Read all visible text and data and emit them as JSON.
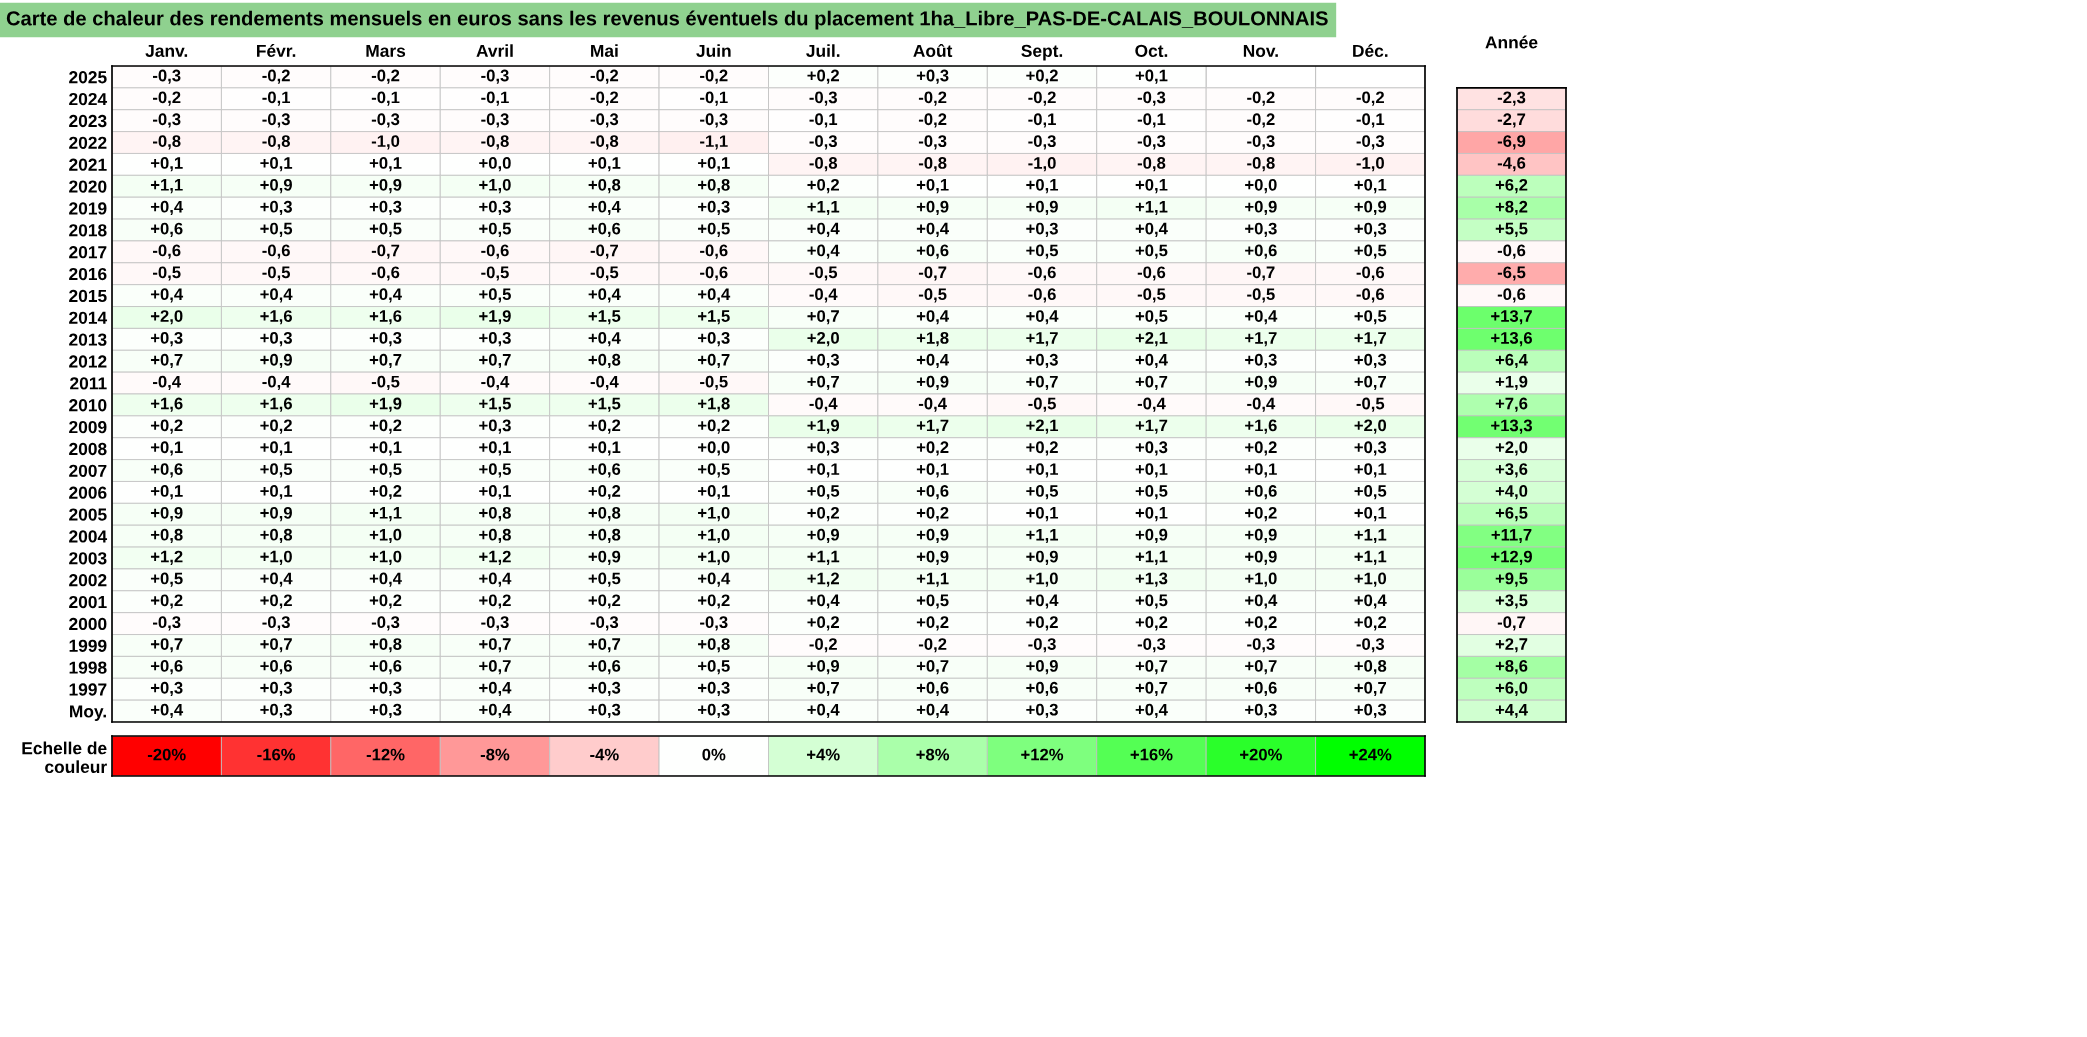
{
  "chart_data": [
    {
      "type": "heatmap",
      "title": "Carte de chaleur des rendements mensuels en euros sans les revenus éventuels du placement 1ha_Libre_PAS-DE-CALAIS_BOULONNAIS",
      "categories": [
        "Janv.",
        "Févr.",
        "Mars",
        "Avril",
        "Mai",
        "Juin",
        "Juil.",
        "Août",
        "Sept.",
        "Oct.",
        "Nov.",
        "Déc."
      ],
      "y_categories": [
        "2025",
        "2024",
        "2023",
        "2022",
        "2021",
        "2020",
        "2019",
        "2018",
        "2017",
        "2016",
        "2015",
        "2014",
        "2013",
        "2012",
        "2011",
        "2010",
        "2009",
        "2008",
        "2007",
        "2006",
        "2005",
        "2004",
        "2003",
        "2002",
        "2001",
        "2000",
        "1999",
        "1998",
        "1997",
        "Moy."
      ],
      "colors": [
        "#ff0000",
        "#ffffff",
        "#00ff00"
      ],
      "cells": [
        [
          -0.3,
          -0.2,
          -0.2,
          -0.3,
          -0.2,
          -0.2,
          0.2,
          0.3,
          0.2,
          0.1,
          null,
          null
        ],
        [
          -0.2,
          -0.1,
          -0.1,
          -0.1,
          -0.2,
          -0.1,
          -0.3,
          -0.2,
          -0.2,
          -0.3,
          -0.2,
          -0.2
        ],
        [
          -0.3,
          -0.3,
          -0.3,
          -0.3,
          -0.3,
          -0.3,
          -0.1,
          -0.2,
          -0.1,
          -0.1,
          -0.2,
          -0.1
        ],
        [
          -0.8,
          -0.8,
          -1.0,
          -0.8,
          -0.8,
          -1.1,
          -0.3,
          -0.3,
          -0.3,
          -0.3,
          -0.3,
          -0.3
        ],
        [
          0.1,
          0.1,
          0.1,
          0.0,
          0.1,
          0.1,
          -0.8,
          -0.8,
          -1.0,
          -0.8,
          -0.8,
          -1.0
        ],
        [
          1.1,
          0.9,
          0.9,
          1.0,
          0.8,
          0.8,
          0.2,
          0.1,
          0.1,
          0.1,
          0.0,
          0.1
        ],
        [
          0.4,
          0.3,
          0.3,
          0.3,
          0.4,
          0.3,
          1.1,
          0.9,
          0.9,
          1.1,
          0.9,
          0.9
        ],
        [
          0.6,
          0.5,
          0.5,
          0.5,
          0.6,
          0.5,
          0.4,
          0.4,
          0.3,
          0.4,
          0.3,
          0.3
        ],
        [
          -0.6,
          -0.6,
          -0.7,
          -0.6,
          -0.7,
          -0.6,
          0.4,
          0.6,
          0.5,
          0.5,
          0.6,
          0.5
        ],
        [
          -0.5,
          -0.5,
          -0.6,
          -0.5,
          -0.5,
          -0.6,
          -0.5,
          -0.7,
          -0.6,
          -0.6,
          -0.7,
          -0.6
        ],
        [
          0.4,
          0.4,
          0.4,
          0.5,
          0.4,
          0.4,
          -0.4,
          -0.5,
          -0.6,
          -0.5,
          -0.5,
          -0.6
        ],
        [
          2.0,
          1.6,
          1.6,
          1.9,
          1.5,
          1.5,
          0.7,
          0.4,
          0.4,
          0.5,
          0.4,
          0.5
        ],
        [
          0.3,
          0.3,
          0.3,
          0.3,
          0.4,
          0.3,
          2.0,
          1.8,
          1.7,
          2.1,
          1.7,
          1.7
        ],
        [
          0.7,
          0.9,
          0.7,
          0.7,
          0.8,
          0.7,
          0.3,
          0.4,
          0.3,
          0.4,
          0.3,
          0.3
        ],
        [
          -0.4,
          -0.4,
          -0.5,
          -0.4,
          -0.4,
          -0.5,
          0.7,
          0.9,
          0.7,
          0.7,
          0.9,
          0.7
        ],
        [
          1.6,
          1.6,
          1.9,
          1.5,
          1.5,
          1.8,
          -0.4,
          -0.4,
          -0.5,
          -0.4,
          -0.4,
          -0.5
        ],
        [
          0.2,
          0.2,
          0.2,
          0.3,
          0.2,
          0.2,
          1.9,
          1.7,
          2.1,
          1.7,
          1.6,
          2.0
        ],
        [
          0.1,
          0.1,
          0.1,
          0.1,
          0.1,
          0.0,
          0.3,
          0.2,
          0.2,
          0.3,
          0.2,
          0.3
        ],
        [
          0.6,
          0.5,
          0.5,
          0.5,
          0.6,
          0.5,
          0.1,
          0.1,
          0.1,
          0.1,
          0.1,
          0.1
        ],
        [
          0.1,
          0.1,
          0.2,
          0.1,
          0.2,
          0.1,
          0.5,
          0.6,
          0.5,
          0.5,
          0.6,
          0.5
        ],
        [
          0.9,
          0.9,
          1.1,
          0.8,
          0.8,
          1.0,
          0.2,
          0.2,
          0.1,
          0.1,
          0.2,
          0.1
        ],
        [
          0.8,
          0.8,
          1.0,
          0.8,
          0.8,
          1.0,
          0.9,
          0.9,
          1.1,
          0.9,
          0.9,
          1.1
        ],
        [
          1.2,
          1.0,
          1.0,
          1.2,
          0.9,
          1.0,
          1.1,
          0.9,
          0.9,
          1.1,
          0.9,
          1.1
        ],
        [
          0.5,
          0.4,
          0.4,
          0.4,
          0.5,
          0.4,
          1.2,
          1.1,
          1.0,
          1.3,
          1.0,
          1.0
        ],
        [
          0.2,
          0.2,
          0.2,
          0.2,
          0.2,
          0.2,
          0.4,
          0.5,
          0.4,
          0.5,
          0.4,
          0.4
        ],
        [
          -0.3,
          -0.3,
          -0.3,
          -0.3,
          -0.3,
          -0.3,
          0.2,
          0.2,
          0.2,
          0.2,
          0.2,
          0.2
        ],
        [
          0.7,
          0.7,
          0.8,
          0.7,
          0.7,
          0.8,
          -0.2,
          -0.2,
          -0.3,
          -0.3,
          -0.3,
          -0.3
        ],
        [
          0.6,
          0.6,
          0.6,
          0.7,
          0.6,
          0.5,
          0.9,
          0.7,
          0.9,
          0.7,
          0.7,
          0.8
        ],
        [
          0.3,
          0.3,
          0.3,
          0.4,
          0.3,
          0.3,
          0.7,
          0.6,
          0.6,
          0.7,
          0.6,
          0.7
        ],
        [
          0.4,
          0.3,
          0.3,
          0.4,
          0.3,
          0.3,
          0.4,
          0.4,
          0.3,
          0.4,
          0.3,
          0.3
        ]
      ],
      "cell_labels": [
        [
          "-0,3",
          "-0,2",
          "-0,2",
          "-0,3",
          "-0,2",
          "-0,2",
          "+0,2",
          "+0,3",
          "+0,2",
          "+0,1",
          null,
          null
        ],
        [
          "-0,2",
          "-0,1",
          "-0,1",
          "-0,1",
          "-0,2",
          "-0,1",
          "-0,3",
          "-0,2",
          "-0,2",
          "-0,3",
          "-0,2",
          "-0,2"
        ],
        [
          "-0,3",
          "-0,3",
          "-0,3",
          "-0,3",
          "-0,3",
          "-0,3",
          "-0,1",
          "-0,2",
          "-0,1",
          "-0,1",
          "-0,2",
          "-0,1"
        ],
        [
          "-0,8",
          "-0,8",
          "-1,0",
          "-0,8",
          "-0,8",
          "-1,1",
          "-0,3",
          "-0,3",
          "-0,3",
          "-0,3",
          "-0,3",
          "-0,3"
        ],
        [
          "+0,1",
          "+0,1",
          "+0,1",
          "+0,0",
          "+0,1",
          "+0,1",
          "-0,8",
          "-0,8",
          "-1,0",
          "-0,8",
          "-0,8",
          "-1,0"
        ],
        [
          "+1,1",
          "+0,9",
          "+0,9",
          "+1,0",
          "+0,8",
          "+0,8",
          "+0,2",
          "+0,1",
          "+0,1",
          "+0,1",
          "+0,0",
          "+0,1"
        ],
        [
          "+0,4",
          "+0,3",
          "+0,3",
          "+0,3",
          "+0,4",
          "+0,3",
          "+1,1",
          "+0,9",
          "+0,9",
          "+1,1",
          "+0,9",
          "+0,9"
        ],
        [
          "+0,6",
          "+0,5",
          "+0,5",
          "+0,5",
          "+0,6",
          "+0,5",
          "+0,4",
          "+0,4",
          "+0,3",
          "+0,4",
          "+0,3",
          "+0,3"
        ],
        [
          "-0,6",
          "-0,6",
          "-0,7",
          "-0,6",
          "-0,7",
          "-0,6",
          "+0,4",
          "+0,6",
          "+0,5",
          "+0,5",
          "+0,6",
          "+0,5"
        ],
        [
          "-0,5",
          "-0,5",
          "-0,6",
          "-0,5",
          "-0,5",
          "-0,6",
          "-0,5",
          "-0,7",
          "-0,6",
          "-0,6",
          "-0,7",
          "-0,6"
        ],
        [
          "+0,4",
          "+0,4",
          "+0,4",
          "+0,5",
          "+0,4",
          "+0,4",
          "-0,4",
          "-0,5",
          "-0,6",
          "-0,5",
          "-0,5",
          "-0,6"
        ],
        [
          "+2,0",
          "+1,6",
          "+1,6",
          "+1,9",
          "+1,5",
          "+1,5",
          "+0,7",
          "+0,4",
          "+0,4",
          "+0,5",
          "+0,4",
          "+0,5"
        ],
        [
          "+0,3",
          "+0,3",
          "+0,3",
          "+0,3",
          "+0,4",
          "+0,3",
          "+2,0",
          "+1,8",
          "+1,7",
          "+2,1",
          "+1,7",
          "+1,7"
        ],
        [
          "+0,7",
          "+0,9",
          "+0,7",
          "+0,7",
          "+0,8",
          "+0,7",
          "+0,3",
          "+0,4",
          "+0,3",
          "+0,4",
          "+0,3",
          "+0,3"
        ],
        [
          "-0,4",
          "-0,4",
          "-0,5",
          "-0,4",
          "-0,4",
          "-0,5",
          "+0,7",
          "+0,9",
          "+0,7",
          "+0,7",
          "+0,9",
          "+0,7"
        ],
        [
          "+1,6",
          "+1,6",
          "+1,9",
          "+1,5",
          "+1,5",
          "+1,8",
          "-0,4",
          "-0,4",
          "-0,5",
          "-0,4",
          "-0,4",
          "-0,5"
        ],
        [
          "+0,2",
          "+0,2",
          "+0,2",
          "+0,3",
          "+0,2",
          "+0,2",
          "+1,9",
          "+1,7",
          "+2,1",
          "+1,7",
          "+1,6",
          "+2,0"
        ],
        [
          "+0,1",
          "+0,1",
          "+0,1",
          "+0,1",
          "+0,1",
          "+0,0",
          "+0,3",
          "+0,2",
          "+0,2",
          "+0,3",
          "+0,2",
          "+0,3"
        ],
        [
          "+0,6",
          "+0,5",
          "+0,5",
          "+0,5",
          "+0,6",
          "+0,5",
          "+0,1",
          "+0,1",
          "+0,1",
          "+0,1",
          "+0,1",
          "+0,1"
        ],
        [
          "+0,1",
          "+0,1",
          "+0,2",
          "+0,1",
          "+0,2",
          "+0,1",
          "+0,5",
          "+0,6",
          "+0,5",
          "+0,5",
          "+0,6",
          "+0,5"
        ],
        [
          "+0,9",
          "+0,9",
          "+1,1",
          "+0,8",
          "+0,8",
          "+1,0",
          "+0,2",
          "+0,2",
          "+0,1",
          "+0,1",
          "+0,2",
          "+0,1"
        ],
        [
          "+0,8",
          "+0,8",
          "+1,0",
          "+0,8",
          "+0,8",
          "+1,0",
          "+0,9",
          "+0,9",
          "+1,1",
          "+0,9",
          "+0,9",
          "+1,1"
        ],
        [
          "+1,2",
          "+1,0",
          "+1,0",
          "+1,2",
          "+0,9",
          "+1,0",
          "+1,1",
          "+0,9",
          "+0,9",
          "+1,1",
          "+0,9",
          "+1,1"
        ],
        [
          "+0,5",
          "+0,4",
          "+0,4",
          "+0,4",
          "+0,5",
          "+0,4",
          "+1,2",
          "+1,1",
          "+1,0",
          "+1,3",
          "+1,0",
          "+1,0"
        ],
        [
          "+0,2",
          "+0,2",
          "+0,2",
          "+0,2",
          "+0,2",
          "+0,2",
          "+0,4",
          "+0,5",
          "+0,4",
          "+0,5",
          "+0,4",
          "+0,4"
        ],
        [
          "-0,3",
          "-0,3",
          "-0,3",
          "-0,3",
          "-0,3",
          "-0,3",
          "+0,2",
          "+0,2",
          "+0,2",
          "+0,2",
          "+0,2",
          "+0,2"
        ],
        [
          "+0,7",
          "+0,7",
          "+0,8",
          "+0,7",
          "+0,7",
          "+0,8",
          "-0,2",
          "-0,2",
          "-0,3",
          "-0,3",
          "-0,3",
          "-0,3"
        ],
        [
          "+0,6",
          "+0,6",
          "+0,6",
          "+0,7",
          "+0,6",
          "+0,5",
          "+0,9",
          "+0,7",
          "+0,9",
          "+0,7",
          "+0,7",
          "+0,8"
        ],
        [
          "+0,3",
          "+0,3",
          "+0,3",
          "+0,4",
          "+0,3",
          "+0,3",
          "+0,7",
          "+0,6",
          "+0,6",
          "+0,7",
          "+0,6",
          "+0,7"
        ],
        [
          "+0,4",
          "+0,3",
          "+0,3",
          "+0,4",
          "+0,3",
          "+0,3",
          "+0,4",
          "+0,4",
          "+0,3",
          "+0,4",
          "+0,3",
          "+0,3"
        ]
      ]
    },
    {
      "type": "heatmap",
      "categories": [
        "Année"
      ],
      "y_categories": [
        null,
        null,
        null,
        null,
        null,
        null,
        null,
        null,
        null,
        null,
        null,
        null,
        null,
        null,
        null,
        null,
        null,
        null,
        null,
        null,
        null,
        null,
        null,
        null,
        null,
        null,
        null,
        null,
        null
      ],
      "colors": [
        "#ff0000",
        "#ffffff",
        "#00ff00"
      ],
      "cells": [
        [
          -2.3
        ],
        [
          -2.7
        ],
        [
          -6.9
        ],
        [
          -4.6
        ],
        [
          6.2
        ],
        [
          8.2
        ],
        [
          5.5
        ],
        [
          -0.6
        ],
        [
          -6.5
        ],
        [
          -0.6
        ],
        [
          13.7
        ],
        [
          13.6
        ],
        [
          6.4
        ],
        [
          1.9
        ],
        [
          7.6
        ],
        [
          13.3
        ],
        [
          2.0
        ],
        [
          3.6
        ],
        [
          4.0
        ],
        [
          6.5
        ],
        [
          11.7
        ],
        [
          12.9
        ],
        [
          9.5
        ],
        [
          3.5
        ],
        [
          -0.7
        ],
        [
          2.7
        ],
        [
          8.6
        ],
        [
          6.0
        ],
        [
          4.4
        ]
      ],
      "cell_labels": [
        [
          "-2,3"
        ],
        [
          "-2,7"
        ],
        [
          "-6,9"
        ],
        [
          "-4,6"
        ],
        [
          "+6,2"
        ],
        [
          "+8,2"
        ],
        [
          "+5,5"
        ],
        [
          "-0,6"
        ],
        [
          "-6,5"
        ],
        [
          "-0,6"
        ],
        [
          "+13,7"
        ],
        [
          "+13,6"
        ],
        [
          "+6,4"
        ],
        [
          "+1,9"
        ],
        [
          "+7,6"
        ],
        [
          "+13,3"
        ],
        [
          "+2,0"
        ],
        [
          "+3,6"
        ],
        [
          "+4,0"
        ],
        [
          "+6,5"
        ],
        [
          "+11,7"
        ],
        [
          "+12,9"
        ],
        [
          "+9,5"
        ],
        [
          "+3,5"
        ],
        [
          "-0,7"
        ],
        [
          "+2,7"
        ],
        [
          "+8,6"
        ],
        [
          "+6,0"
        ],
        [
          "+4,4"
        ]
      ]
    },
    {
      "type": "heatmap",
      "categories": [
        null,
        null,
        null,
        null,
        null,
        null,
        null,
        null,
        null,
        null,
        null,
        null
      ],
      "y_categories": [
        "Echelle de couleur"
      ],
      "colors": [
        "#ff0000",
        "#ffffff",
        "#00ff00"
      ],
      "cells": [
        [
          -20,
          -16,
          -12,
          -8,
          -4,
          0,
          4,
          8,
          12,
          16,
          20,
          24
        ]
      ],
      "cell_labels": [
        [
          "-20%",
          "-16%",
          "-12%",
          "-8%",
          "-4%",
          "0%",
          "+4%",
          "+8%",
          "+12%",
          "+16%",
          "+20%",
          "+24%"
        ]
      ]
    }
  ]
}
